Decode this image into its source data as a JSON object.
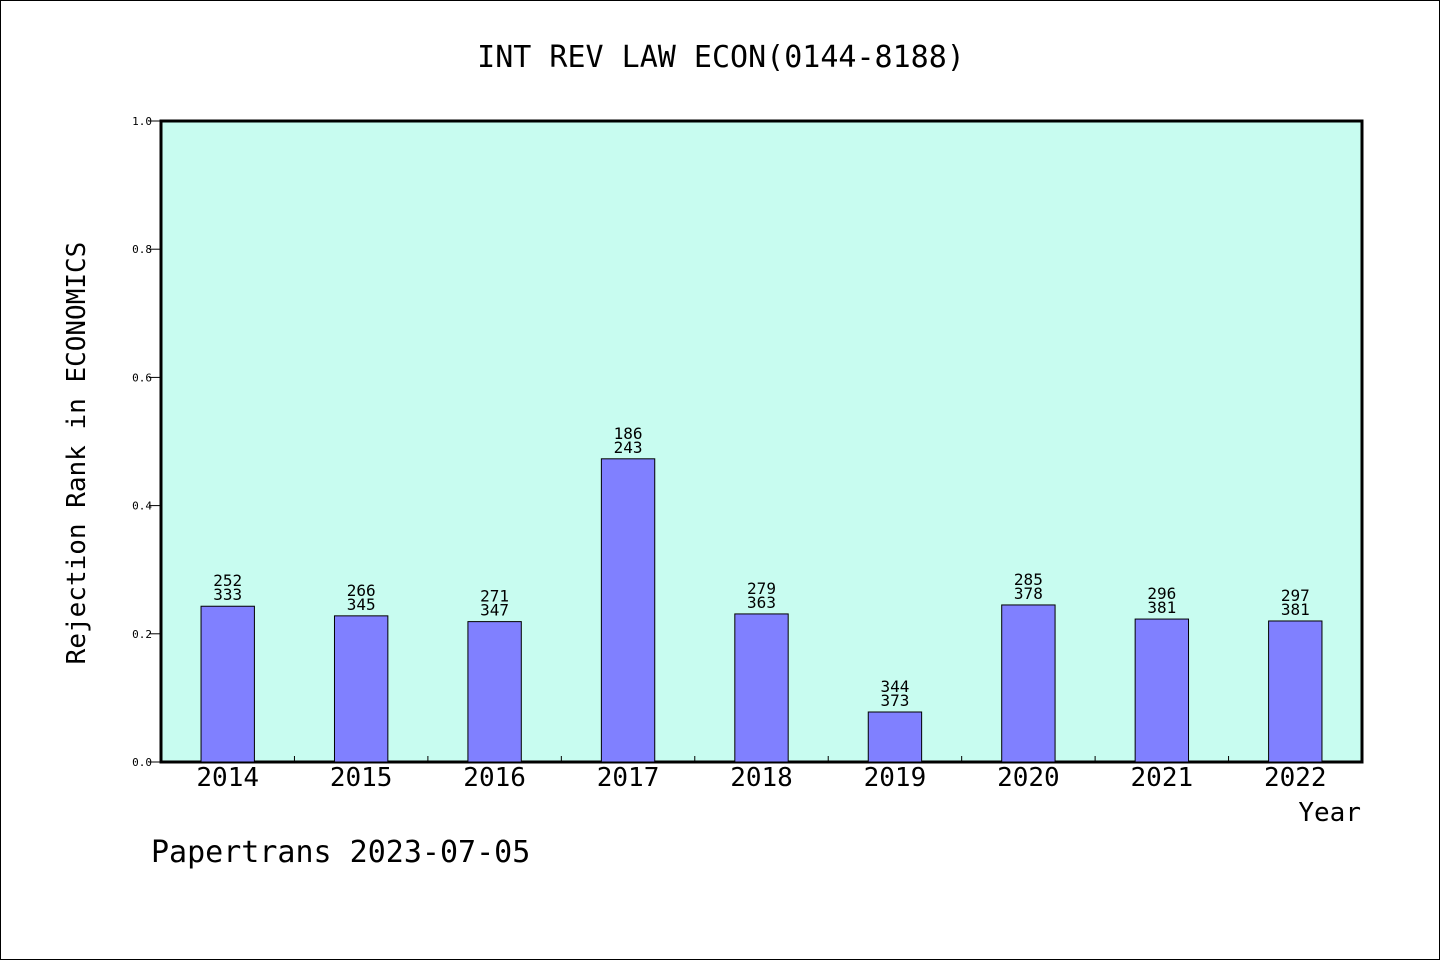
{
  "footer": "Papertrans 2023-07-05",
  "chart_data": {
    "type": "bar",
    "title": "INT REV LAW ECON(0144-8188)",
    "xlabel": "Year",
    "ylabel": "Rejection Rank in ECONOMICS",
    "ylim": [
      0,
      1
    ],
    "yticks": [
      "0.0",
      "0.2",
      "0.4",
      "0.6",
      "0.8",
      "1.0"
    ],
    "categories": [
      "2014",
      "2015",
      "2016",
      "2017",
      "2018",
      "2019",
      "2020",
      "2021",
      "2022"
    ],
    "values": [
      0.243,
      0.228,
      0.219,
      0.473,
      0.231,
      0.078,
      0.245,
      0.223,
      0.22
    ],
    "label_top": [
      "252",
      "266",
      "271",
      "186",
      "279",
      "344",
      "285",
      "296",
      "297"
    ],
    "label_bottom": [
      "333",
      "345",
      "347",
      "243",
      "363",
      "373",
      "378",
      "381",
      "381"
    ],
    "grid": false,
    "legend": "none",
    "colors": {
      "plot_bg": "#c8fcf0",
      "bar": "#8080ff",
      "axis": "#000000"
    }
  }
}
